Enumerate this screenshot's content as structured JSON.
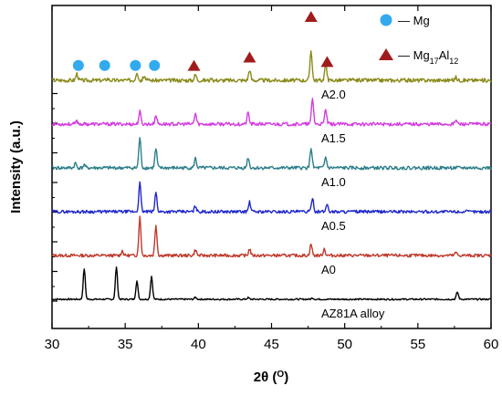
{
  "chart_data": {
    "type": "line",
    "xlabel": {
      "main": "2θ (",
      "sup": "O",
      "tail": ")"
    },
    "ylabel": "Intensity (a.u.)",
    "xlim": [
      30,
      60
    ],
    "x_ticks": [
      30,
      35,
      40,
      45,
      50,
      55,
      60
    ],
    "y_ticks": "unlabeled",
    "offset_step": 1,
    "legend": {
      "position": "top-right",
      "items": [
        {
          "marker": "circle",
          "color": "#33aaee",
          "label": "— Mg"
        },
        {
          "marker": "triangle",
          "color": "#a01c1c",
          "label": "— Mg",
          "sub": "17",
          "tail": "Al",
          "sub2": "12"
        }
      ]
    },
    "series": [
      {
        "name": "AZ81A alloy",
        "color": "#000000",
        "offset": 0,
        "noise": 0.04,
        "seed": 7,
        "peaks": [
          [
            32.2,
            1.6
          ],
          [
            34.4,
            1.7
          ],
          [
            35.8,
            0.95
          ],
          [
            36.8,
            1.2
          ],
          [
            39.8,
            0.1
          ],
          [
            43.4,
            0.08
          ],
          [
            47.8,
            0.07
          ],
          [
            57.7,
            0.38
          ]
        ]
      },
      {
        "name": "A0",
        "color": "#c0392b",
        "offset": 1,
        "noise": 0.08,
        "seed": 13,
        "peaks": [
          [
            34.8,
            0.25
          ],
          [
            36.0,
            2.0
          ],
          [
            37.1,
            1.6
          ],
          [
            39.8,
            0.3
          ],
          [
            43.5,
            0.35
          ],
          [
            47.7,
            0.6
          ],
          [
            48.6,
            0.35
          ],
          [
            57.6,
            0.15
          ]
        ]
      },
      {
        "name": "A0.5",
        "color": "#1f27cc",
        "offset": 2,
        "noise": 0.08,
        "seed": 29,
        "peaks": [
          [
            36.0,
            1.5
          ],
          [
            37.1,
            1.0
          ],
          [
            39.8,
            0.3
          ],
          [
            43.5,
            0.5
          ],
          [
            47.8,
            0.75
          ],
          [
            48.8,
            0.4
          ]
        ]
      },
      {
        "name": "A1.0",
        "color": "#2c7f8a",
        "offset": 3,
        "noise": 0.09,
        "seed": 41,
        "peaks": [
          [
            31.6,
            0.25
          ],
          [
            32.2,
            0.15
          ],
          [
            36.0,
            1.6
          ],
          [
            37.1,
            1.0
          ],
          [
            39.8,
            0.5
          ],
          [
            43.4,
            0.55
          ],
          [
            47.7,
            1.05
          ],
          [
            48.7,
            0.55
          ]
        ]
      },
      {
        "name": "A1.5",
        "color": "#d43be0",
        "offset": 4,
        "noise": 0.09,
        "seed": 53,
        "peaks": [
          [
            31.7,
            0.15
          ],
          [
            36.0,
            0.65
          ],
          [
            37.1,
            0.45
          ],
          [
            39.8,
            0.55
          ],
          [
            43.4,
            0.6
          ],
          [
            47.8,
            1.35
          ],
          [
            48.7,
            0.75
          ],
          [
            57.6,
            0.2
          ]
        ]
      },
      {
        "name": "A2.0",
        "color": "#8a8a1a",
        "offset": 5,
        "noise": 0.1,
        "seed": 67,
        "peaks": [
          [
            31.7,
            0.35
          ],
          [
            33.8,
            0.1
          ],
          [
            35.8,
            0.45
          ],
          [
            36.3,
            0.25
          ],
          [
            39.8,
            0.3
          ],
          [
            43.5,
            0.55
          ],
          [
            47.7,
            1.6
          ],
          [
            48.7,
            0.85
          ],
          [
            57.6,
            0.15
          ]
        ]
      }
    ],
    "annotations": {
      "mg_circles_x": [
        31.8,
        33.6,
        35.7,
        37.0
      ],
      "mg17al12_triangles_x": [
        39.7,
        43.5,
        47.7,
        48.8
      ]
    }
  }
}
